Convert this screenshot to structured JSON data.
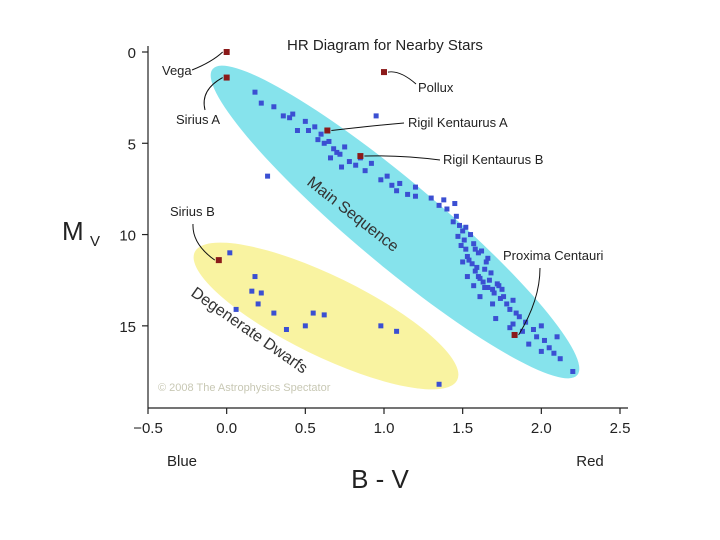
{
  "chart_data": {
    "type": "scatter",
    "title": "HR Diagram for Nearby Stars",
    "xlabel": "B - V",
    "ylabel_main": "M",
    "ylabel_sub": "V",
    "x_end_labels": {
      "left": "Blue",
      "right": "Red"
    },
    "xlim": [
      -0.5,
      2.5
    ],
    "ylim": [
      19.5,
      0
    ],
    "y_inverted": true,
    "xticks": [
      {
        "value": -0.5,
        "label": "−0.5"
      },
      {
        "value": 0.0,
        "label": "0.0"
      },
      {
        "value": 0.5,
        "label": "0.5"
      },
      {
        "value": 1.0,
        "label": "1.0"
      },
      {
        "value": 1.5,
        "label": "1.5"
      },
      {
        "value": 2.0,
        "label": "2.0"
      },
      {
        "value": 2.5,
        "label": "2.5"
      }
    ],
    "yticks": [
      {
        "value": 0,
        "label": "0"
      },
      {
        "value": 5,
        "label": "5"
      },
      {
        "value": 10,
        "label": "10"
      },
      {
        "value": 15,
        "label": "15"
      }
    ],
    "grid": false,
    "regions": [
      {
        "name": "Main Sequence",
        "color": "#86e3ec"
      },
      {
        "name": "Degenerate Dwarfs",
        "color": "#f9f3a1"
      }
    ],
    "copyright": "© 2008 The Astrophysics Spectator",
    "colors": {
      "star": "#3b4fd2",
      "highlight": "#8b1a1a",
      "axis": "#222222"
    },
    "series": [
      {
        "values": [
          [
            0.18,
            2.2
          ],
          [
            0.22,
            2.8
          ],
          [
            0.3,
            3.0
          ],
          [
            0.36,
            3.5
          ],
          [
            0.42,
            3.4
          ],
          [
            0.5,
            3.8
          ],
          [
            0.45,
            4.3
          ],
          [
            0.52,
            4.3
          ],
          [
            0.58,
            4.8
          ],
          [
            0.6,
            4.5
          ],
          [
            0.62,
            5.0
          ],
          [
            0.65,
            4.9
          ],
          [
            0.68,
            5.3
          ],
          [
            0.7,
            5.5
          ],
          [
            0.72,
            5.6
          ],
          [
            0.75,
            5.2
          ],
          [
            0.78,
            6.0
          ],
          [
            0.82,
            6.2
          ],
          [
            0.85,
            5.8
          ],
          [
            0.88,
            6.5
          ],
          [
            0.92,
            6.1
          ],
          [
            0.98,
            7.0
          ],
          [
            1.02,
            6.8
          ],
          [
            1.05,
            7.3
          ],
          [
            1.1,
            7.2
          ],
          [
            1.15,
            7.8
          ],
          [
            1.2,
            7.4
          ],
          [
            1.3,
            8.0
          ],
          [
            1.38,
            8.1
          ],
          [
            1.4,
            8.6
          ],
          [
            1.45,
            8.3
          ],
          [
            1.46,
            9.0
          ],
          [
            1.48,
            9.5
          ],
          [
            1.5,
            9.8
          ],
          [
            1.51,
            10.3
          ],
          [
            1.52,
            10.8
          ],
          [
            1.53,
            11.2
          ],
          [
            1.55,
            10.0
          ],
          [
            1.56,
            11.6
          ],
          [
            1.57,
            10.5
          ],
          [
            1.58,
            12.0
          ],
          [
            1.6,
            11.0
          ],
          [
            1.6,
            12.3
          ],
          [
            1.62,
            10.9
          ],
          [
            1.63,
            12.6
          ],
          [
            1.65,
            11.5
          ],
          [
            1.66,
            12.9
          ],
          [
            1.68,
            12.1
          ],
          [
            1.7,
            13.2
          ],
          [
            1.72,
            12.7
          ],
          [
            1.74,
            13.5
          ],
          [
            1.75,
            13.0
          ],
          [
            1.78,
            13.8
          ],
          [
            1.8,
            14.1
          ],
          [
            1.82,
            13.6
          ],
          [
            1.84,
            14.3
          ],
          [
            1.86,
            14.5
          ],
          [
            1.9,
            14.8
          ],
          [
            1.95,
            15.2
          ],
          [
            1.97,
            15.6
          ],
          [
            2.0,
            15.0
          ],
          [
            2.02,
            15.8
          ],
          [
            2.05,
            16.2
          ],
          [
            2.08,
            16.5
          ],
          [
            2.12,
            16.8
          ],
          [
            2.2,
            17.5
          ],
          [
            1.44,
            9.3
          ],
          [
            1.49,
            10.6
          ],
          [
            1.54,
            11.4
          ],
          [
            1.59,
            11.8
          ],
          [
            1.61,
            12.4
          ],
          [
            1.64,
            11.9
          ],
          [
            1.67,
            12.5
          ],
          [
            1.69,
            13.0
          ],
          [
            1.73,
            12.8
          ],
          [
            1.76,
            13.4
          ],
          [
            1.52,
            9.6
          ],
          [
            1.47,
            10.1
          ],
          [
            1.57,
            12.8
          ],
          [
            1.61,
            13.4
          ],
          [
            1.69,
            13.8
          ],
          [
            1.53,
            12.3
          ],
          [
            1.58,
            10.8
          ],
          [
            1.66,
            11.3
          ],
          [
            1.88,
            15.3
          ],
          [
            1.92,
            16.0
          ],
          [
            1.71,
            14.6
          ],
          [
            1.8,
            15.1
          ],
          [
            0.26,
            6.8
          ],
          [
            0.95,
            3.5
          ],
          [
            1.2,
            7.9
          ],
          [
            0.4,
            3.6
          ],
          [
            0.56,
            4.1
          ],
          [
            0.66,
            5.8
          ],
          [
            0.73,
            6.3
          ],
          [
            1.08,
            7.6
          ],
          [
            1.35,
            8.4
          ],
          [
            1.5,
            11.5
          ],
          [
            1.64,
            12.9
          ],
          [
            1.82,
            14.9
          ],
          [
            2.0,
            16.4
          ],
          [
            2.1,
            15.6
          ],
          [
            0.02,
            11.0
          ],
          [
            0.06,
            14.1
          ],
          [
            0.18,
            12.3
          ],
          [
            0.16,
            13.1
          ],
          [
            0.22,
            13.2
          ],
          [
            0.3,
            14.3
          ],
          [
            0.38,
            15.2
          ],
          [
            0.55,
            14.3
          ],
          [
            0.5,
            15.0
          ],
          [
            0.62,
            14.4
          ],
          [
            0.98,
            15.0
          ],
          [
            1.08,
            15.3
          ],
          [
            1.35,
            18.2
          ],
          [
            0.2,
            13.8
          ]
        ]
      },
      {
        "values": [
          [
            0.0,
            0.0
          ],
          [
            0.0,
            1.4
          ],
          [
            1.0,
            1.1
          ],
          [
            0.64,
            4.3
          ],
          [
            0.85,
            5.7
          ],
          [
            1.83,
            15.5
          ],
          [
            -0.05,
            11.4
          ]
        ]
      }
    ],
    "annotations": [
      {
        "text": "Vega",
        "x": 0.0,
        "y": 0.0
      },
      {
        "text": "Sirius A",
        "x": 0.0,
        "y": 1.4
      },
      {
        "text": "Pollux",
        "x": 1.0,
        "y": 1.1
      },
      {
        "text": "Rigil Kentaurus A",
        "x": 0.64,
        "y": 4.3
      },
      {
        "text": "Rigil Kentaurus B",
        "x": 0.85,
        "y": 5.7
      },
      {
        "text": "Proxima Centauri",
        "x": 1.83,
        "y": 15.5
      },
      {
        "text": "Sirius B",
        "x": -0.05,
        "y": 11.4
      }
    ]
  }
}
